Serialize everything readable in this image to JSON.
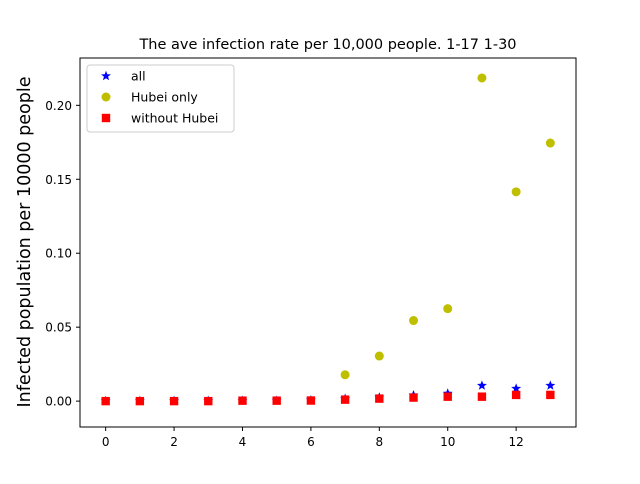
{
  "chart_data": {
    "type": "scatter",
    "title": "The ave infection rate per 10,000 people. 1-17 1-30",
    "xlabel": "",
    "ylabel": "Infected population per 10000 people",
    "xlim": [
      -0.75,
      13.75
    ],
    "ylim": [
      -0.0175,
      0.232
    ],
    "x_ticks": [
      0,
      2,
      4,
      6,
      8,
      10,
      12
    ],
    "y_ticks": [
      0.0,
      0.05,
      0.1,
      0.15,
      0.2
    ],
    "x_tick_labels": [
      "0",
      "2",
      "4",
      "6",
      "8",
      "10",
      "12"
    ],
    "y_tick_labels": [
      "0.00",
      "0.05",
      "0.10",
      "0.15",
      "0.20"
    ],
    "grid": false,
    "legend_position": "upper-left",
    "series": [
      {
        "name": "all",
        "marker": "star",
        "color": "#0000ff",
        "x": [
          0,
          1,
          2,
          3,
          4,
          5,
          6,
          7,
          8,
          9,
          10,
          11,
          12,
          13
        ],
        "y": [
          0.0001,
          0.0001,
          0.0002,
          0.0002,
          0.0003,
          0.0004,
          0.0006,
          0.0016,
          0.0025,
          0.004,
          0.0052,
          0.0105,
          0.0085,
          0.0105
        ]
      },
      {
        "name": "Hubei only",
        "marker": "circle",
        "color": "#bfbf00",
        "x": [
          7,
          8,
          9,
          10,
          11,
          12,
          13
        ],
        "y": [
          0.0178,
          0.0305,
          0.0545,
          0.0625,
          0.2185,
          0.1415,
          0.1745
        ]
      },
      {
        "name": "without Hubei",
        "marker": "square",
        "color": "#ff0000",
        "x": [
          0,
          1,
          2,
          3,
          4,
          5,
          6,
          7,
          8,
          9,
          10,
          11,
          12,
          13
        ],
        "y": [
          0.0,
          0.0,
          0.0,
          0.0,
          0.0003,
          0.0003,
          0.0004,
          0.001,
          0.0017,
          0.0024,
          0.003,
          0.003,
          0.0042,
          0.0042
        ]
      }
    ]
  }
}
